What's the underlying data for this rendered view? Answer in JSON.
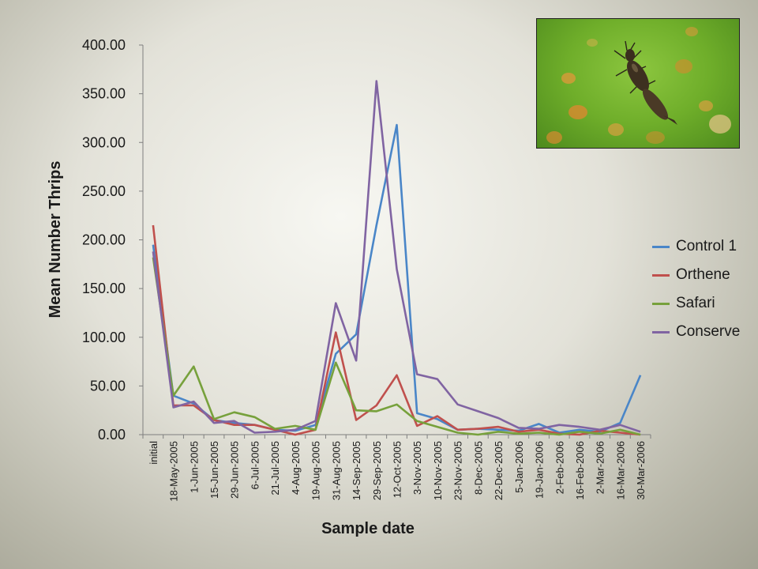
{
  "chart_data": {
    "type": "line",
    "title": "",
    "ylabel": "Mean Number Thrips",
    "xlabel": "Sample date",
    "ylim": [
      0,
      400
    ],
    "yticks": [
      0,
      50,
      100,
      150,
      200,
      250,
      300,
      350,
      400
    ],
    "ytick_labels": [
      "0.00",
      "50.00",
      "100.00",
      "150.00",
      "200.00",
      "250.00",
      "300.00",
      "350.00",
      "400.00"
    ],
    "grid": false,
    "legend_position": "right",
    "categories": [
      "initial",
      "18-May-2005",
      "1-Jun-2005",
      "15-Jun-2005",
      "29-Jun-2005",
      "6-Jul-2005",
      "21-Jul-2005",
      "4-Aug-2005",
      "19-Aug-2005",
      "31-Aug-2005",
      "14-Sep-2005",
      "29-Sep-2005",
      "12-Oct-2005",
      "3-Nov-2005",
      "10-Nov-2005",
      "23-Nov-2005",
      "8-Dec-2005",
      "22-Dec-2005",
      "5-Jan-2006",
      "19-Jan-2006",
      "2-Feb-2006",
      "16-Feb-2006",
      "2-Mar-2006",
      "16-Mar-2006",
      "30-Mar-2006"
    ],
    "series": [
      {
        "name": "Control 1",
        "color": "#4a86c8",
        "values": [
          195,
          40,
          32,
          15,
          12,
          10,
          5,
          4,
          10,
          83,
          103,
          215,
          318,
          22,
          16,
          5,
          6,
          5,
          4,
          11,
          2,
          5,
          3,
          12,
          61
        ]
      },
      {
        "name": "Orthene",
        "color": "#c0504d",
        "values": [
          215,
          30,
          30,
          15,
          10,
          10,
          5,
          0,
          5,
          105,
          15,
          30,
          61,
          9,
          19,
          5,
          6,
          8,
          3,
          5,
          1,
          0,
          4,
          2,
          0
        ]
      },
      {
        "name": "Safari",
        "color": "#77a13c",
        "values": [
          182,
          40,
          70,
          16,
          23,
          18,
          6,
          9,
          5,
          74,
          25,
          24,
          31,
          14,
          8,
          2,
          0,
          3,
          1,
          2,
          0,
          3,
          1,
          5,
          0
        ]
      },
      {
        "name": "Conserve",
        "color": "#8064a2",
        "values": [
          188,
          28,
          34,
          12,
          14,
          2,
          3,
          5,
          14,
          135,
          76,
          363,
          170,
          62,
          57,
          31,
          24,
          17,
          7,
          6,
          10,
          8,
          5,
          10,
          3
        ]
      }
    ]
  }
}
